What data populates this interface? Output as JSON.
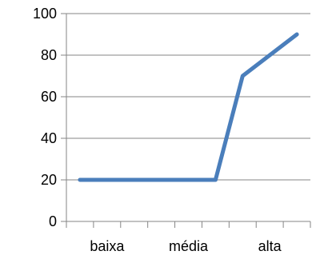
{
  "chart_data": {
    "type": "line",
    "x": [
      1,
      2,
      3,
      4,
      5,
      6,
      7,
      8,
      9
    ],
    "categories": [
      "baixa",
      "média",
      "alta"
    ],
    "category_positions": [
      2,
      5,
      8
    ],
    "series": [
      {
        "values": [
          20,
          20,
          20,
          20,
          20,
          20,
          70,
          80,
          90
        ]
      }
    ],
    "yticks": [
      "0",
      "20",
      "40",
      "60",
      "80",
      "100"
    ],
    "ylim": [
      0,
      100
    ],
    "xlim": [
      0.5,
      9.5
    ],
    "grid": true,
    "legend": "none",
    "colors": {
      "line": "#4A7EBB",
      "grid": "#868686",
      "axis": "#868686",
      "text": "#000000"
    }
  }
}
